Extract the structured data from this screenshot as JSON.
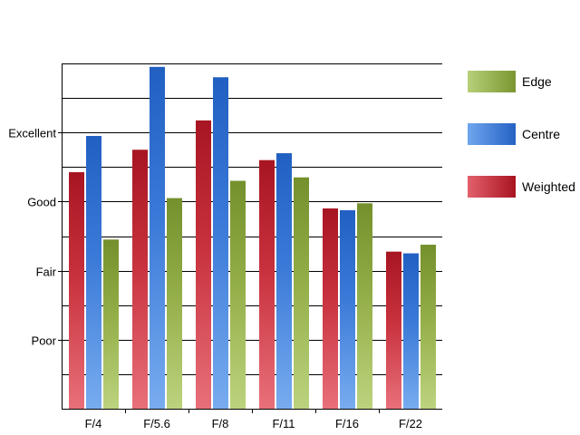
{
  "chart_data": {
    "type": "bar",
    "categories": [
      "F/4",
      "F/5.6",
      "F/8",
      "F/11",
      "F/16",
      "F/22"
    ],
    "y_tick_labels": [
      {
        "value": 2,
        "label": "Poor"
      },
      {
        "value": 4,
        "label": "Fair"
      },
      {
        "value": 6,
        "label": "Good"
      },
      {
        "value": 8,
        "label": "Excellent"
      }
    ],
    "ylim": [
      0,
      10
    ],
    "gridlines": [
      1,
      2,
      3,
      4,
      5,
      6,
      7,
      8,
      9,
      10
    ],
    "grid": true,
    "legend_position": "right",
    "series": [
      {
        "name": "Weighted",
        "color": "#c0202c",
        "values": [
          6.85,
          7.5,
          8.35,
          7.2,
          5.8,
          4.55
        ]
      },
      {
        "name": "Centre",
        "color": "#2e6fce",
        "values": [
          7.9,
          9.9,
          9.6,
          7.4,
          5.75,
          4.5
        ]
      },
      {
        "name": "Edge",
        "color": "#8aa73e",
        "values": [
          4.9,
          6.1,
          6.6,
          6.7,
          5.95,
          4.75
        ]
      }
    ],
    "legend_order": [
      "Edge",
      "Centre",
      "Weighted"
    ]
  }
}
